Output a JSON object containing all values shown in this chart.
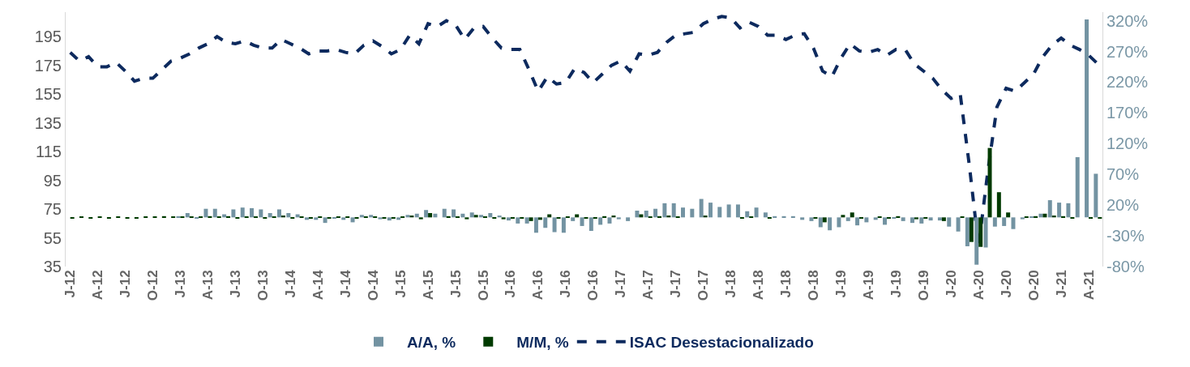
{
  "chart_data": {
    "type": "bar",
    "categories": [
      "J-12",
      null,
      null,
      "A-12",
      null,
      null,
      "J-12",
      null,
      null,
      "O-12",
      null,
      null,
      "J-13",
      null,
      null,
      "A-13",
      null,
      null,
      "J-13",
      null,
      null,
      "O-13",
      null,
      null,
      "J-14",
      null,
      null,
      "A-14",
      null,
      null,
      "J-14",
      null,
      null,
      "O-14",
      null,
      null,
      "J-15",
      null,
      null,
      "A-15",
      null,
      null,
      "J-15",
      null,
      null,
      "O-15",
      null,
      null,
      "J-16",
      null,
      null,
      "A-16",
      null,
      null,
      "J-16",
      null,
      null,
      "O-16",
      null,
      null,
      "J-17",
      null,
      null,
      "A-17",
      null,
      null,
      "J-17",
      null,
      null,
      "O-17",
      null,
      null,
      "J-18",
      null,
      null,
      "A-18",
      null,
      null,
      "J-18",
      null,
      null,
      "O-18",
      null,
      null,
      "J-19",
      null,
      null,
      "A-19",
      null,
      null,
      "J-19",
      null,
      null,
      "O-19",
      null,
      null,
      "J-20",
      null,
      null,
      "A-20",
      null,
      null,
      "J-20",
      null,
      null,
      "O-20",
      null,
      null,
      "J-21",
      null,
      null,
      "A-21",
      null
    ],
    "series": [
      {
        "name": "A/A, %",
        "axis": "y2",
        "color": "#7393a2",
        "values": [
          null,
          null,
          null,
          null,
          null,
          null,
          null,
          null,
          null,
          null,
          null,
          null,
          2,
          7,
          -1,
          14,
          14,
          5,
          13,
          16,
          15,
          13,
          7,
          13,
          7,
          5,
          -4,
          -4,
          -9,
          -2,
          -4,
          -8,
          4,
          4,
          -3,
          -5,
          -4,
          4,
          6,
          12,
          6,
          14,
          13,
          6,
          8,
          4,
          7,
          3,
          -5,
          -10,
          -10,
          -25,
          -17,
          -24,
          -25,
          -6,
          -14,
          -22,
          -12,
          -10,
          -3,
          -6,
          11,
          11,
          14,
          23,
          23,
          16,
          14,
          30,
          24,
          17,
          21,
          21,
          10,
          16,
          8,
          2,
          2,
          2,
          -4,
          -6,
          -16,
          -21,
          -16,
          -6,
          -13,
          -8,
          -4,
          -12,
          -1,
          -6,
          -9,
          -10,
          -5,
          -5,
          -15,
          -23,
          -47,
          -77,
          -49,
          -15,
          -14,
          -19,
          -3,
          1,
          6,
          28,
          24,
          23,
          98,
          322,
          71
        ]
      },
      {
        "name": "M/M, %",
        "axis": "y2",
        "color": "#003a00",
        "values": [
          -1,
          1,
          -1,
          1,
          -1,
          1,
          -1,
          -2,
          1,
          1,
          2,
          1,
          1,
          1,
          1,
          2,
          1,
          2,
          -1,
          1,
          1,
          -1,
          1,
          3,
          -1,
          1,
          -1,
          1,
          -1,
          1,
          1,
          -1,
          1,
          1,
          -1,
          -1,
          1,
          3,
          -3,
          7,
          0,
          2,
          1,
          -3,
          4,
          1,
          -1,
          -3,
          -1,
          -1,
          -6,
          -4,
          5,
          -2,
          1,
          5,
          -1,
          -2,
          2,
          3,
          0,
          0,
          5,
          1,
          2,
          3,
          1,
          0,
          0,
          3,
          0,
          0,
          0,
          -2,
          1,
          0,
          -2,
          0,
          0,
          0,
          0,
          -1,
          -8,
          0,
          4,
          8,
          -1,
          0,
          1,
          -1,
          2,
          0,
          -3,
          -1,
          0,
          -6,
          0,
          1,
          -40,
          -48,
          113,
          41,
          8,
          0,
          1,
          2,
          6,
          3,
          2,
          -2,
          0,
          -1,
          -1
        ]
      },
      {
        "name": "ISAC Desestacionalizado",
        "type": "line",
        "axis": "y",
        "color": "#0d2a5e",
        "line_style": "dashed",
        "values": [
          184,
          178,
          181,
          174,
          174,
          177,
          171,
          164,
          166,
          166,
          172,
          178,
          180,
          183,
          187,
          190,
          195,
          191,
          190,
          192,
          189,
          187,
          187,
          193,
          190,
          187,
          183,
          185,
          185,
          186,
          184,
          183,
          189,
          192,
          188,
          183,
          186,
          196,
          190,
          204,
          202,
          206,
          203,
          193,
          201,
          202,
          194,
          187,
          186,
          186,
          172,
          157,
          167,
          162,
          163,
          173,
          170,
          163,
          169,
          175,
          178,
          171,
          183,
          182,
          184,
          191,
          196,
          197,
          198,
          204,
          207,
          209,
          208,
          201,
          205,
          202,
          196,
          196,
          193,
          196,
          197,
          187,
          171,
          167,
          180,
          190,
          185,
          184,
          186,
          182,
          186,
          186,
          176,
          171,
          166,
          158,
          152,
          155,
          105,
          49,
          101,
          146,
          159,
          157,
          163,
          169,
          181,
          189,
          194,
          189,
          186,
          182,
          176
        ]
      }
    ],
    "ylim": [
      35,
      212
    ],
    "yticks": [
      35,
      55,
      75,
      95,
      115,
      135,
      155,
      175,
      195
    ],
    "y2lim": [
      -80,
      334
    ],
    "y2ticks": [
      {
        "value": -80,
        "label": "-80%"
      },
      {
        "value": -30,
        "label": "-30%"
      },
      {
        "value": 20,
        "label": "20%"
      },
      {
        "value": 70,
        "label": "70%"
      },
      {
        "value": 120,
        "label": "120%"
      },
      {
        "value": 170,
        "label": "170%"
      },
      {
        "value": 220,
        "label": "220%"
      },
      {
        "value": 270,
        "label": "270%"
      },
      {
        "value": 320,
        "label": "320%"
      }
    ],
    "grid": false,
    "legend": "bottom"
  }
}
